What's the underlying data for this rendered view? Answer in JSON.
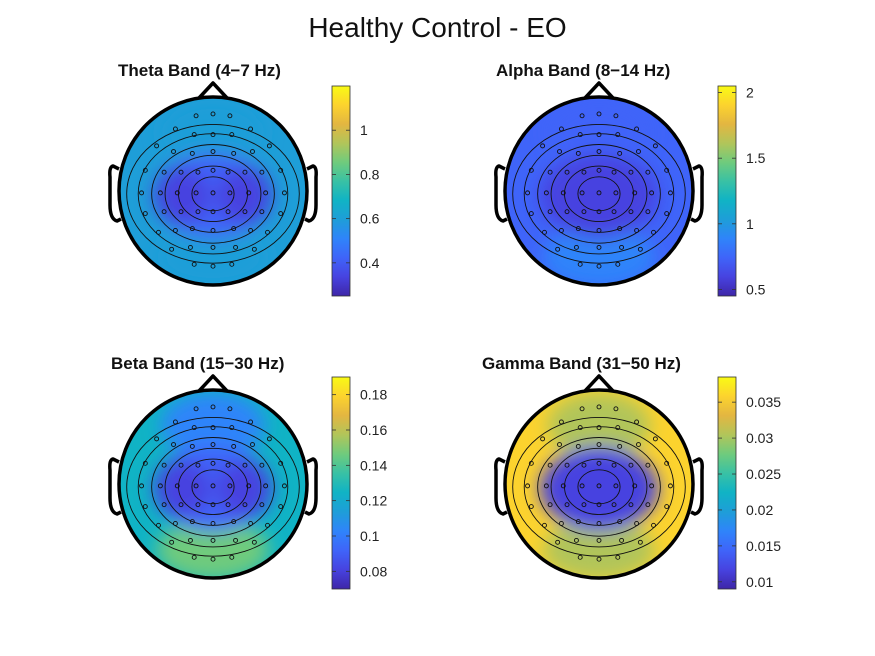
{
  "title": "Healthy Control - EO",
  "colormap": [
    "#3e26a8",
    "#4743e0",
    "#3f64f9",
    "#2f84fa",
    "#1e9ed8",
    "#10b3c5",
    "#38c1a5",
    "#6fcb7d",
    "#b1c55a",
    "#e3b641",
    "#fcd32e",
    "#f9fa14"
  ],
  "chart_data": [
    {
      "type": "heatmap",
      "subtype": "scalp-topography",
      "title": "Theta Band (4−7 Hz)",
      "clim": [
        0.25,
        1.2
      ],
      "colorbar_ticks": [
        0.4,
        0.6,
        0.8,
        1
      ],
      "colorbar_tick_labels": [
        "0.4",
        "0.6",
        "0.8",
        "1"
      ],
      "regions": {
        "frontal": 0.6,
        "left_center": 0.32,
        "right_center": 0.32,
        "midline": 0.45,
        "occipital": 0.58,
        "periphery": 0.62
      }
    },
    {
      "type": "heatmap",
      "subtype": "scalp-topography",
      "title": "Alpha Band (8−14 Hz)",
      "clim": [
        0.45,
        2.05
      ],
      "colorbar_ticks": [
        0.5,
        1,
        1.5,
        2
      ],
      "colorbar_tick_labels": [
        "0.5",
        "1",
        "1.5",
        "2"
      ],
      "regions": {
        "frontal": 0.75,
        "left_center": 0.55,
        "right_center": 0.55,
        "midline": 0.6,
        "occipital": 0.85,
        "periphery": 0.8
      }
    },
    {
      "type": "heatmap",
      "subtype": "scalp-topography",
      "title": "Beta Band (15−30 Hz)",
      "clim": [
        0.07,
        0.19
      ],
      "colorbar_ticks": [
        0.08,
        0.1,
        0.12,
        0.14,
        0.16,
        0.18
      ],
      "colorbar_tick_labels": [
        "0.08",
        "0.1",
        "0.12",
        "0.14",
        "0.16",
        "0.18"
      ],
      "regions": {
        "frontal": 0.105,
        "left_center": 0.08,
        "right_center": 0.08,
        "midline": 0.09,
        "occipital": 0.15,
        "periphery": 0.125
      }
    },
    {
      "type": "heatmap",
      "subtype": "scalp-topography",
      "title": "Gamma Band (31−50 Hz)",
      "clim": [
        0.009,
        0.0385
      ],
      "colorbar_ticks": [
        0.01,
        0.015,
        0.02,
        0.025,
        0.03,
        0.035
      ],
      "colorbar_tick_labels": [
        "0.01",
        "0.015",
        "0.02",
        "0.025",
        "0.03",
        "0.035"
      ],
      "regions": {
        "frontal": 0.03,
        "left_center": 0.012,
        "right_center": 0.012,
        "midline": 0.012,
        "occipital": 0.03,
        "periphery": 0.037
      }
    }
  ]
}
